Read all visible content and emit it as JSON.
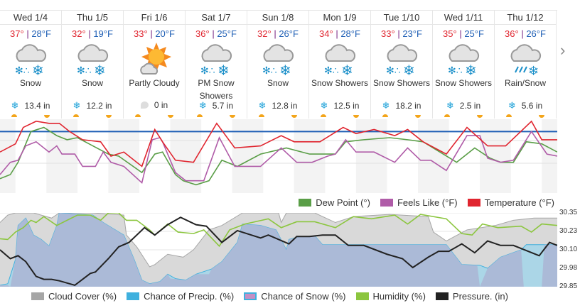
{
  "days": [
    {
      "name": "Wed 1/4",
      "hi": "37°",
      "lo": "28°F",
      "icon": "snow-icon",
      "cond": "Snow",
      "amount": "13.4 in",
      "amt_icon": "snowflake-icon"
    },
    {
      "name": "Thu 1/5",
      "hi": "32°",
      "lo": "19°F",
      "icon": "snow-icon",
      "cond": "Snow",
      "amount": "12.2 in",
      "amt_icon": "snowflake-icon"
    },
    {
      "name": "Fri 1/6",
      "hi": "33°",
      "lo": "20°F",
      "icon": "partly-cloudy-icon",
      "cond": "Partly Cloudy",
      "amount": "0 in",
      "amt_icon": "raindrop-icon"
    },
    {
      "name": "Sat 1/7",
      "hi": "36°",
      "lo": "25°F",
      "icon": "snow-icon",
      "cond": "PM Snow Showers",
      "amount": "5.7 in",
      "amt_icon": "snowflake-icon"
    },
    {
      "name": "Sun 1/8",
      "hi": "32°",
      "lo": "26°F",
      "icon": "snow-icon",
      "cond": "Snow",
      "amount": "12.8 in",
      "amt_icon": "snowflake-icon"
    },
    {
      "name": "Mon 1/9",
      "hi": "34°",
      "lo": "28°F",
      "icon": "snow-icon",
      "cond": "Snow Showers",
      "amount": "12.5 in",
      "amt_icon": "snowflake-icon"
    },
    {
      "name": "Tue 1/10",
      "hi": "33°",
      "lo": "23°F",
      "icon": "snow-icon",
      "cond": "Snow Showers",
      "amount": "18.2 in",
      "amt_icon": "snowflake-icon"
    },
    {
      "name": "Wed 1/11",
      "hi": "35°",
      "lo": "25°F",
      "icon": "snow-icon",
      "cond": "Snow Showers",
      "amount": "2.5 in",
      "amt_icon": "snowflake-icon"
    },
    {
      "name": "Thu 1/12",
      "hi": "36°",
      "lo": "26°F",
      "icon": "rain-snow-icon",
      "cond": "Rain/Snow",
      "amount": "5.6 in",
      "amt_icon": "snowflake-icon"
    }
  ],
  "separator": " | ",
  "nav": {
    "next_icon": "chevron-right-icon",
    "next_glyph": "›"
  },
  "chart_data": [
    {
      "type": "line",
      "xlabel": "hour",
      "ylim": [
        2,
        38
      ],
      "xlim": [
        0,
        216
      ],
      "reference_line": 32,
      "legend": [
        "Dew Point (°)",
        "Feels Like (°F)",
        "Temperature (°F)"
      ],
      "series": [
        {
          "name": "Dew Point (°)",
          "color": "#5a9e47",
          "x": [
            0,
            4,
            7,
            12,
            17,
            22,
            26,
            30,
            36,
            42,
            46,
            55,
            60,
            63,
            68,
            71,
            76,
            81,
            86,
            92,
            101,
            111,
            120,
            130,
            134,
            141,
            151,
            158,
            164,
            177,
            184,
            190,
            194,
            199,
            204,
            210,
            216
          ],
          "y": [
            9,
            11,
            17,
            32,
            34,
            30,
            28,
            29,
            25,
            21,
            20,
            12,
            21,
            22,
            11,
            8,
            6,
            8,
            18,
            15,
            21,
            24,
            21,
            21,
            27,
            28,
            29,
            28,
            27,
            17,
            24,
            19,
            17,
            17,
            27,
            26,
            22
          ]
        },
        {
          "name": "Feels Like (°F)",
          "color": "#b05ca8",
          "x": [
            0,
            4,
            7,
            10,
            14,
            19,
            22,
            24,
            29,
            32,
            37,
            40,
            43,
            48,
            55,
            59,
            62,
            63,
            68,
            72,
            79,
            85,
            91,
            101,
            109,
            115,
            121,
            127,
            130,
            134,
            138,
            145,
            153,
            158,
            163,
            167,
            173,
            181,
            186,
            189,
            194,
            199,
            206,
            212,
            216
          ],
          "y": [
            11,
            17,
            18,
            25,
            27,
            22,
            25,
            21,
            21,
            15,
            15,
            22,
            17,
            15,
            7,
            28,
            29,
            27,
            12,
            8,
            8,
            29,
            15,
            15,
            24,
            17,
            17,
            20,
            21,
            28,
            22,
            22,
            17,
            24,
            18,
            18,
            13,
            30,
            30,
            19,
            17,
            18,
            32,
            21,
            20
          ]
        },
        {
          "name": "Temperature (°F)",
          "color": "#e0252f",
          "x": [
            0,
            6,
            9,
            14,
            19,
            23,
            27,
            32,
            39,
            43,
            48,
            55,
            60,
            63,
            68,
            75,
            84,
            91,
            101,
            109,
            114,
            124,
            133,
            138,
            145,
            153,
            158,
            164,
            173,
            181,
            189,
            196,
            206,
            210,
            216
          ],
          "y": [
            22,
            26,
            34,
            37,
            36,
            36,
            32,
            28,
            27,
            20,
            22,
            15,
            33,
            27,
            18,
            17,
            36,
            24,
            25,
            30,
            27,
            27,
            34,
            31,
            33,
            30,
            33,
            27,
            21,
            34,
            25,
            25,
            37,
            28,
            28
          ]
        }
      ]
    },
    {
      "type": "area",
      "xlabel": "hour",
      "xlim": [
        0,
        216
      ],
      "ylim_percent": [
        0,
        100
      ],
      "ylim_pressure": [
        29.85,
        30.35
      ],
      "y_ticks": [
        "30.35",
        "30.23",
        "30.10",
        "29.98",
        "29.85"
      ],
      "legend": [
        "Cloud Cover (%)",
        "Chance of Precip. (%)",
        "Chance of Snow (%)",
        "Humidity (%)",
        "Pressure. (in)"
      ],
      "series": [
        {
          "name": "Cloud Cover (%)",
          "color": "#a6a6a6",
          "fill": "#d9d9d9",
          "x": [
            0,
            3,
            6,
            13,
            20,
            23,
            36,
            48,
            49,
            53,
            58,
            60,
            65,
            71,
            75,
            81,
            86,
            94,
            108,
            109,
            111,
            122,
            130,
            137,
            151,
            166,
            168,
            173,
            181,
            192,
            199,
            207,
            216
          ],
          "y": [
            87,
            97,
            100,
            100,
            93,
            100,
            100,
            97,
            70,
            54,
            27,
            30,
            44,
            40,
            50,
            77,
            83,
            100,
            100,
            87,
            100,
            100,
            87,
            95,
            98,
            95,
            74,
            62,
            77,
            83,
            90,
            93,
            93
          ]
        },
        {
          "name": "Chance of Precip. (%)",
          "color": "#3fb0de",
          "fill": "#a9d6e8",
          "x": [
            0,
            3,
            6,
            7,
            10,
            13,
            16,
            19,
            22,
            23,
            36,
            40,
            48,
            52,
            55,
            58,
            62,
            65,
            68,
            72,
            76,
            82,
            86,
            92,
            94,
            101,
            107,
            111,
            112,
            115,
            122,
            125,
            130,
            144,
            173,
            179,
            186,
            189,
            194,
            202,
            204,
            216
          ],
          "y": [
            2,
            4,
            37,
            83,
            93,
            70,
            64,
            55,
            83,
            100,
            97,
            87,
            70,
            37,
            9,
            4,
            7,
            17,
            11,
            9,
            17,
            24,
            34,
            60,
            85,
            83,
            77,
            50,
            64,
            67,
            69,
            57,
            57,
            57,
            57,
            30,
            29,
            25,
            40,
            50,
            57,
            57
          ]
        },
        {
          "name": "Chance of Snow (%)",
          "color": "#c48fc4",
          "fill": "#abb8d6",
          "x": [
            0,
            3,
            4,
            6,
            7,
            10,
            13,
            16,
            19,
            22,
            23,
            36,
            40,
            48,
            52,
            55,
            58,
            62,
            65,
            66,
            72,
            76,
            81,
            82,
            86,
            92,
            94,
            101,
            107,
            111,
            112,
            115,
            122,
            125,
            130,
            144,
            173,
            179,
            185,
            186,
            189,
            194,
            202,
            203,
            210,
            211,
            216
          ],
          "y": [
            2,
            2,
            0,
            37,
            83,
            93,
            70,
            64,
            55,
            83,
            100,
            97,
            87,
            70,
            37,
            9,
            4,
            7,
            17,
            11,
            9,
            17,
            17,
            24,
            34,
            60,
            85,
            83,
            77,
            50,
            64,
            67,
            69,
            57,
            57,
            57,
            57,
            30,
            29,
            0,
            25,
            40,
            50,
            0,
            0,
            57,
            57
          ]
        },
        {
          "name": "Humidity (%)",
          "color": "#8cc63f",
          "x": [
            0,
            3,
            6,
            9,
            12,
            14,
            17,
            22,
            26,
            30,
            35,
            39,
            42,
            46,
            49,
            53,
            58,
            60,
            65,
            69,
            75,
            79,
            85,
            89,
            95,
            104,
            109,
            115,
            122,
            130,
            137,
            144,
            153,
            158,
            163,
            173,
            179,
            183,
            187,
            193,
            202,
            206,
            210,
            216
          ],
          "y": [
            65,
            64,
            74,
            80,
            90,
            87,
            95,
            83,
            90,
            97,
            97,
            90,
            100,
            100,
            90,
            90,
            77,
            70,
            85,
            74,
            72,
            77,
            55,
            77,
            85,
            92,
            80,
            88,
            88,
            80,
            95,
            92,
            97,
            85,
            98,
            92,
            72,
            70,
            85,
            80,
            82,
            74,
            85,
            83
          ]
        },
        {
          "name": "Pressure. (in)",
          "color": "#222222",
          "x": [
            0,
            4,
            7,
            10,
            14,
            17,
            20,
            23,
            29,
            35,
            37,
            42,
            46,
            50,
            56,
            60,
            65,
            70,
            76,
            80,
            86,
            92,
            101,
            104,
            112,
            115,
            120,
            125,
            130,
            135,
            141,
            150,
            156,
            160,
            166,
            170,
            174,
            179,
            184,
            189,
            194,
            199,
            209,
            213,
            216
          ],
          "y": [
            30.1,
            30.04,
            30.06,
            30.02,
            29.92,
            29.9,
            29.9,
            29.89,
            29.86,
            29.94,
            29.95,
            30.04,
            30.12,
            30.15,
            30.25,
            30.2,
            30.27,
            30.32,
            30.27,
            30.26,
            30.15,
            30.23,
            30.18,
            30.2,
            30.14,
            30.19,
            30.19,
            30.2,
            30.2,
            30.13,
            30.13,
            30.07,
            30.04,
            29.98,
            30.05,
            30.09,
            30.09,
            30.14,
            30.08,
            30.16,
            30.13,
            30.13,
            30.06,
            30.15,
            30.13
          ]
        }
      ]
    }
  ]
}
